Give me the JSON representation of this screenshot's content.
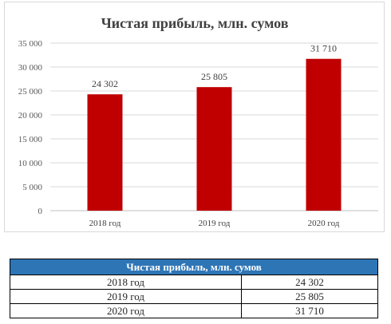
{
  "chart_data": {
    "type": "bar",
    "title": "Чистая прибыль, млн. сумов",
    "categories": [
      "2018 год",
      "2019 год",
      "2020 год"
    ],
    "values": [
      24302,
      25805,
      31710
    ],
    "value_labels": [
      "24 302",
      "25 805",
      "31 710"
    ],
    "y_ticks": [
      "0",
      "5 000",
      "10 000",
      "15 000",
      "20 000",
      "25 000",
      "30 000",
      "35 000"
    ],
    "ylim": [
      0,
      35000
    ],
    "xlabel": "",
    "ylabel": "",
    "grid": true,
    "legend": "none",
    "bar_color": "#c00000"
  },
  "table": {
    "header": "Чистая прибыль, млн. сумов",
    "header_color": "#2e75b6",
    "rows": [
      {
        "year": "2018 год",
        "value": "24 302"
      },
      {
        "year": "2019 год",
        "value": "25 805"
      },
      {
        "year": "2020 год",
        "value": "31 710"
      }
    ]
  }
}
